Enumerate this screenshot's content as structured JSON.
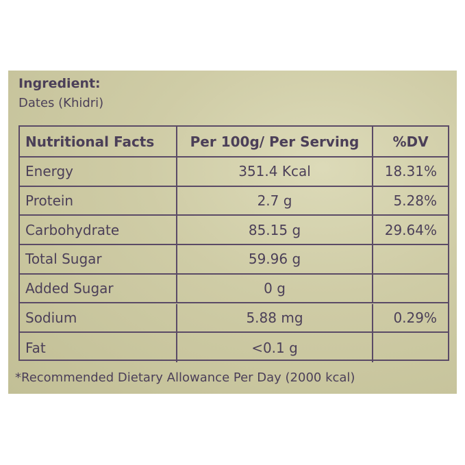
{
  "header": {
    "title": "Ingredient:",
    "text": "Dates (Khidri)"
  },
  "table": {
    "columns": [
      "Nutritional Facts",
      "Per 100g/ Per Serving",
      "%DV"
    ],
    "rows": [
      [
        "Energy",
        "351.4 Kcal",
        "18.31%"
      ],
      [
        "Protein",
        "2.7 g",
        "5.28%"
      ],
      [
        "Carbohydrate",
        "85.15 g",
        "29.64%"
      ],
      [
        "Total Sugar",
        "59.96 g"
      ],
      [
        "Added Sugar",
        "0 g"
      ],
      [
        "Sodium",
        "5.88 mg",
        "0.29%"
      ],
      [
        "Fat",
        "<0.1 g"
      ]
    ]
  },
  "footnote": "*Recommended Dietary Allowance Per Day (2000 kcal)"
}
